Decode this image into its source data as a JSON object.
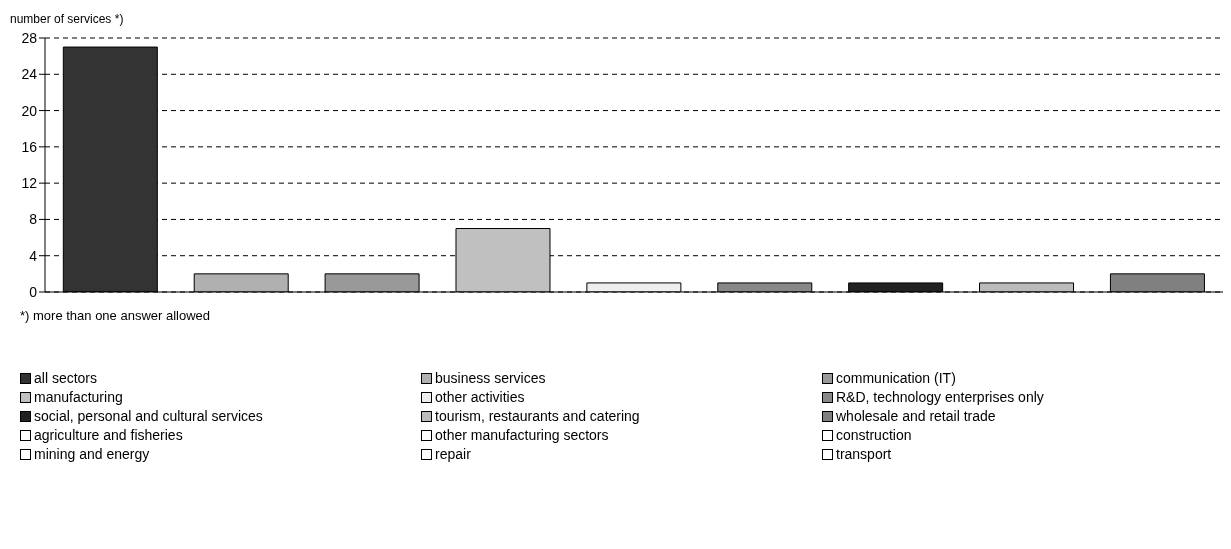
{
  "chart_data": {
    "type": "bar",
    "ylabel": "number of services *)",
    "annotations": [
      "*) more than one answer allowed"
    ],
    "categories": [
      null,
      null,
      null,
      null,
      null,
      null,
      null,
      null,
      null
    ],
    "stacked": true,
    "ylim": [
      0,
      28
    ],
    "yticks": [
      0,
      4,
      8,
      12,
      16,
      20,
      24,
      28
    ],
    "grid": "y",
    "legend": "bottom",
    "series": [
      {
        "name": "all sectors",
        "color": "#333333",
        "values": [
          27,
          null,
          null,
          null,
          null,
          null,
          null,
          null,
          null
        ]
      },
      {
        "name": "business services",
        "color": "#b0b0b0",
        "values": [
          null,
          2,
          null,
          null,
          null,
          null,
          null,
          null,
          null
        ]
      },
      {
        "name": "communication (IT)",
        "color": "#999999",
        "values": [
          null,
          null,
          2,
          null,
          null,
          null,
          null,
          null,
          null
        ]
      },
      {
        "name": "manufacturing",
        "color": "#c0c0c0",
        "values": [
          null,
          null,
          null,
          7,
          null,
          null,
          null,
          null,
          null
        ]
      },
      {
        "name": "other activities",
        "color": "#eeeeee",
        "values": [
          null,
          null,
          null,
          null,
          1,
          null,
          null,
          null,
          null
        ]
      },
      {
        "name": "R&D, technology enterprises only",
        "color": "#888888",
        "values": [
          null,
          null,
          null,
          null,
          null,
          1,
          null,
          null,
          null
        ]
      },
      {
        "name": "social, personal and cultural services",
        "color": "#222222",
        "values": [
          null,
          null,
          null,
          null,
          null,
          null,
          1,
          null,
          null
        ]
      },
      {
        "name": "tourism, restaurants and catering",
        "color": "#bbbbbb",
        "values": [
          null,
          null,
          null,
          null,
          null,
          null,
          null,
          1,
          null
        ]
      },
      {
        "name": "wholesale and retail trade",
        "color": "#808080",
        "values": [
          null,
          null,
          null,
          null,
          null,
          null,
          null,
          null,
          2
        ]
      },
      {
        "name": "agriculture and fisheries",
        "color": "#ffffff",
        "values": [
          null,
          null,
          null,
          null,
          null,
          null,
          null,
          null,
          null
        ]
      },
      {
        "name": "other manufacturing sectors",
        "color": "#ffffff",
        "values": [
          null,
          null,
          null,
          null,
          null,
          null,
          null,
          null,
          null
        ]
      },
      {
        "name": "construction",
        "color": "#ffffff",
        "values": [
          null,
          null,
          null,
          null,
          null,
          null,
          null,
          null,
          null
        ]
      },
      {
        "name": "mining and energy",
        "color": "#ffffff",
        "values": [
          null,
          null,
          null,
          null,
          null,
          null,
          null,
          null,
          null
        ]
      },
      {
        "name": "repair",
        "color": "#ffffff",
        "values": [
          null,
          null,
          null,
          null,
          null,
          null,
          null,
          null,
          null
        ]
      },
      {
        "name": "transport",
        "color": "#ffffff",
        "values": [
          null,
          null,
          null,
          null,
          null,
          null,
          null,
          null,
          null
        ]
      }
    ]
  }
}
